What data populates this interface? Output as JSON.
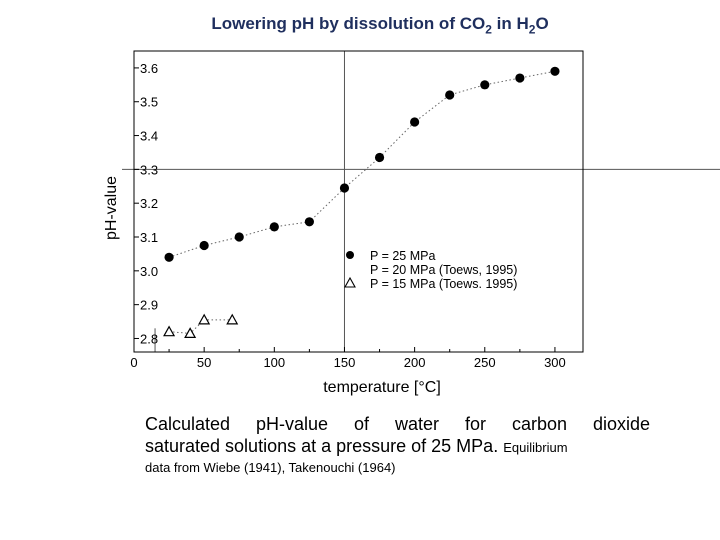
{
  "slide": {
    "title_main": "Lowering pH by dissolution of CO",
    "title_sub1": "2",
    "title_mid": " in H",
    "title_sub2": "2",
    "title_end": "O",
    "caption_line1": "Calculated pH-value of water for carbon dioxide",
    "caption_line2": "saturated solutions at a pressure of 25 MPa.",
    "caption_line2_small": "Equilibrium",
    "caption_line3": "data from Wiebe (1941), Takenouchi (1964)"
  },
  "chart_data": {
    "type": "scatter",
    "xlabel": "temperature [°C]",
    "ylabel": "pH-value",
    "xlim": [
      0,
      320
    ],
    "ylim": [
      2.76,
      3.65
    ],
    "x_ticks": [
      0,
      50,
      100,
      150,
      200,
      250,
      300
    ],
    "y_ticks": [
      2.8,
      2.9,
      3.0,
      3.1,
      3.2,
      3.3,
      3.4,
      3.5,
      3.6
    ],
    "y_tick_labels": [
      "2.8",
      "2.9",
      "3.0",
      "3.1",
      "3.2",
      "3.3",
      "3.4",
      "3.5",
      "3.6"
    ],
    "reference_lines": {
      "x": 150,
      "y": 3.3
    },
    "series": [
      {
        "name": "P = 25 MPa",
        "marker": "filled-circle",
        "connect": "dotted",
        "x": [
          25,
          50,
          75,
          100,
          125,
          150,
          175,
          200,
          225,
          250,
          275,
          300
        ],
        "y": [
          3.04,
          3.075,
          3.1,
          3.13,
          3.145,
          3.245,
          3.335,
          3.44,
          3.52,
          3.55,
          3.57,
          3.59
        ]
      },
      {
        "name": "P = 20 MPa (Toews, 1995)",
        "marker": "none",
        "connect": "none",
        "x": [],
        "y": []
      },
      {
        "name": "P = 15 MPa (Toews. 1995)",
        "marker": "open-triangle",
        "connect": "dotted",
        "x": [
          25,
          40,
          50,
          70
        ],
        "y": [
          2.82,
          2.815,
          2.855,
          2.855
        ]
      }
    ],
    "legend_position": "lower-right inside plot"
  }
}
